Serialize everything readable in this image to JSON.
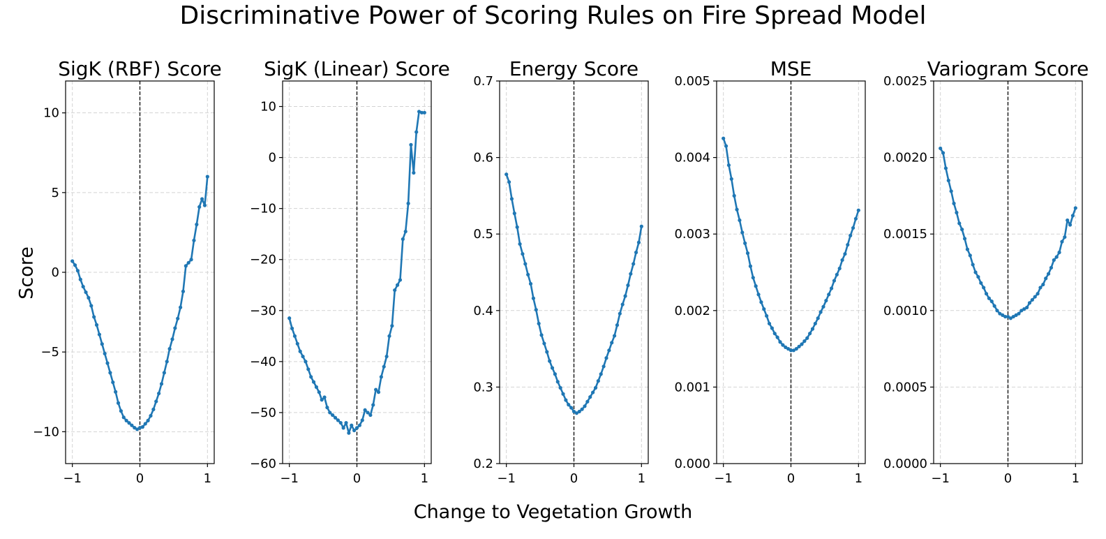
{
  "figure": {
    "title": "Discriminative Power of Scoring Rules on Fire Spread Model",
    "xlabel": "Change to Vegetation Growth",
    "ylabel": "Score"
  },
  "colors": {
    "line": "#1f77b4",
    "grid": "#d3d3d3",
    "zero_line": "#000000"
  },
  "chart_data": [
    {
      "type": "line",
      "title": "SigK (RBF) Score",
      "xlim": [
        -1.1,
        1.1
      ],
      "ylim": [
        -12,
        12
      ],
      "xticks": [
        -1,
        0,
        1
      ],
      "xtick_labels": [
        "−1",
        "0",
        "1"
      ],
      "yticks": [
        -10,
        -5,
        0,
        5,
        10
      ],
      "ytick_labels": [
        "−10",
        "−5",
        "0",
        "5",
        "10"
      ],
      "grid": true,
      "vline_x": 0,
      "series": [
        {
          "x": [
            -1.0,
            -0.96,
            -0.92,
            -0.88,
            -0.84,
            -0.8,
            -0.76,
            -0.72,
            -0.68,
            -0.64,
            -0.6,
            -0.56,
            -0.52,
            -0.48,
            -0.44,
            -0.4,
            -0.36,
            -0.32,
            -0.28,
            -0.24,
            -0.2,
            -0.16,
            -0.12,
            -0.08,
            -0.04,
            0.0,
            0.04,
            0.08,
            0.12,
            0.16,
            0.2,
            0.24,
            0.28,
            0.32,
            0.36,
            0.4,
            0.44,
            0.48,
            0.52,
            0.56,
            0.6,
            0.64,
            0.68,
            0.72,
            0.76,
            0.8,
            0.84,
            0.88,
            0.92,
            0.96,
            1.0
          ],
          "y": [
            0.7,
            0.45,
            0.1,
            -0.45,
            -0.9,
            -1.25,
            -1.6,
            -2.1,
            -2.8,
            -3.3,
            -3.9,
            -4.5,
            -5.1,
            -5.7,
            -6.3,
            -6.9,
            -7.5,
            -8.2,
            -8.7,
            -9.1,
            -9.3,
            -9.45,
            -9.6,
            -9.75,
            -9.85,
            -9.75,
            -9.7,
            -9.5,
            -9.3,
            -9.0,
            -8.6,
            -8.1,
            -7.6,
            -7.0,
            -6.3,
            -5.6,
            -4.8,
            -4.2,
            -3.5,
            -2.9,
            -2.2,
            -1.2,
            0.4,
            0.6,
            0.8,
            2.0,
            3.0,
            4.1,
            4.6,
            4.2,
            6.0
          ]
        }
      ]
    },
    {
      "type": "line",
      "title": "SigK (Linear) Score",
      "xlim": [
        -1.1,
        1.1
      ],
      "ylim": [
        -60,
        15
      ],
      "xticks": [
        -1,
        0,
        1
      ],
      "xtick_labels": [
        "−1",
        "0",
        "1"
      ],
      "yticks": [
        -60,
        -50,
        -40,
        -30,
        -20,
        -10,
        0,
        10
      ],
      "ytick_labels": [
        "−60",
        "−50",
        "−40",
        "−30",
        "−20",
        "−10",
        "0",
        "10"
      ],
      "grid": true,
      "vline_x": 0,
      "series": [
        {
          "x": [
            -1.0,
            -0.96,
            -0.92,
            -0.88,
            -0.84,
            -0.8,
            -0.76,
            -0.72,
            -0.68,
            -0.64,
            -0.6,
            -0.56,
            -0.52,
            -0.48,
            -0.44,
            -0.4,
            -0.36,
            -0.32,
            -0.28,
            -0.24,
            -0.2,
            -0.16,
            -0.12,
            -0.08,
            -0.04,
            0.0,
            0.04,
            0.08,
            0.12,
            0.16,
            0.2,
            0.24,
            0.28,
            0.32,
            0.36,
            0.4,
            0.44,
            0.48,
            0.52,
            0.56,
            0.6,
            0.64,
            0.68,
            0.72,
            0.76,
            0.8,
            0.84,
            0.88,
            0.92,
            0.96,
            1.0
          ],
          "y": [
            -31.5,
            -33.5,
            -35.0,
            -36.5,
            -38.0,
            -39.0,
            -40.0,
            -41.5,
            -43.0,
            -44.0,
            -45.0,
            -46.0,
            -47.5,
            -47.0,
            -49.0,
            -50.0,
            -50.5,
            -51.0,
            -51.5,
            -52.0,
            -53.0,
            -52.0,
            -54.0,
            -52.5,
            -53.5,
            -53.0,
            -52.5,
            -51.5,
            -49.5,
            -50.0,
            -50.5,
            -48.5,
            -45.5,
            -46.0,
            -43.0,
            -41.0,
            -39.0,
            -35.0,
            -33.0,
            -26.0,
            -25.0,
            -24.0,
            -16.0,
            -14.5,
            -9.0,
            2.5,
            -3.0,
            5.0,
            9.0,
            8.8,
            8.8
          ]
        }
      ]
    },
    {
      "type": "line",
      "title": "Energy Score",
      "xlim": [
        -1.1,
        1.1
      ],
      "ylim": [
        0.2,
        0.7
      ],
      "xticks": [
        -1,
        0,
        1
      ],
      "xtick_labels": [
        "−1",
        "0",
        "1"
      ],
      "yticks": [
        0.2,
        0.3,
        0.4,
        0.5,
        0.6,
        0.7
      ],
      "ytick_labels": [
        "0.2",
        "0.3",
        "0.4",
        "0.5",
        "0.6",
        "0.7"
      ],
      "grid": true,
      "vline_x": 0,
      "series": [
        {
          "x": [
            -1.0,
            -0.96,
            -0.92,
            -0.88,
            -0.84,
            -0.8,
            -0.76,
            -0.72,
            -0.68,
            -0.64,
            -0.6,
            -0.56,
            -0.52,
            -0.48,
            -0.44,
            -0.4,
            -0.36,
            -0.32,
            -0.28,
            -0.24,
            -0.2,
            -0.16,
            -0.12,
            -0.08,
            -0.04,
            0.0,
            0.04,
            0.08,
            0.12,
            0.16,
            0.2,
            0.24,
            0.28,
            0.32,
            0.36,
            0.4,
            0.44,
            0.48,
            0.52,
            0.56,
            0.6,
            0.64,
            0.68,
            0.72,
            0.76,
            0.8,
            0.84,
            0.88,
            0.92,
            0.96,
            1.0
          ],
          "y": [
            0.578,
            0.568,
            0.546,
            0.527,
            0.509,
            0.487,
            0.474,
            0.461,
            0.447,
            0.435,
            0.416,
            0.401,
            0.383,
            0.368,
            0.357,
            0.346,
            0.334,
            0.325,
            0.317,
            0.307,
            0.299,
            0.291,
            0.283,
            0.277,
            0.273,
            0.268,
            0.266,
            0.268,
            0.271,
            0.275,
            0.281,
            0.287,
            0.293,
            0.299,
            0.308,
            0.317,
            0.327,
            0.338,
            0.348,
            0.358,
            0.367,
            0.381,
            0.396,
            0.408,
            0.419,
            0.433,
            0.448,
            0.461,
            0.476,
            0.489,
            0.51
          ]
        }
      ]
    },
    {
      "type": "line",
      "title": "MSE",
      "xlim": [
        -1.1,
        1.1
      ],
      "ylim": [
        0.0,
        0.005
      ],
      "xticks": [
        -1,
        0,
        1
      ],
      "xtick_labels": [
        "−1",
        "0",
        "1"
      ],
      "yticks": [
        0.0,
        0.001,
        0.002,
        0.003,
        0.004,
        0.005
      ],
      "ytick_labels": [
        "0.000",
        "0.001",
        "0.002",
        "0.003",
        "0.004",
        "0.005"
      ],
      "grid": true,
      "vline_x": 0,
      "series": [
        {
          "x": [
            -1.0,
            -0.96,
            -0.92,
            -0.88,
            -0.84,
            -0.8,
            -0.76,
            -0.72,
            -0.68,
            -0.64,
            -0.6,
            -0.56,
            -0.52,
            -0.48,
            -0.44,
            -0.4,
            -0.36,
            -0.32,
            -0.28,
            -0.24,
            -0.2,
            -0.16,
            -0.12,
            -0.08,
            -0.04,
            0.0,
            0.04,
            0.08,
            0.12,
            0.16,
            0.2,
            0.24,
            0.28,
            0.32,
            0.36,
            0.4,
            0.44,
            0.48,
            0.52,
            0.56,
            0.6,
            0.64,
            0.68,
            0.72,
            0.76,
            0.8,
            0.84,
            0.88,
            0.92,
            0.96,
            1.0
          ],
          "y": [
            0.00425,
            0.00415,
            0.0039,
            0.00372,
            0.0035,
            0.00332,
            0.00318,
            0.00302,
            0.00288,
            0.00275,
            0.00258,
            0.00243,
            0.00232,
            0.00221,
            0.00211,
            0.00202,
            0.00193,
            0.00183,
            0.00177,
            0.0017,
            0.00165,
            0.00159,
            0.00155,
            0.00152,
            0.0015,
            0.00148,
            0.00148,
            0.0015,
            0.00153,
            0.00156,
            0.0016,
            0.00164,
            0.0017,
            0.00176,
            0.00183,
            0.0019,
            0.00198,
            0.00205,
            0.00213,
            0.00221,
            0.00229,
            0.00239,
            0.00247,
            0.00255,
            0.00266,
            0.00274,
            0.00286,
            0.00298,
            0.00308,
            0.0032,
            0.00331
          ]
        }
      ]
    },
    {
      "type": "line",
      "title": "Variogram Score",
      "xlim": [
        -1.1,
        1.1
      ],
      "ylim": [
        0.0,
        0.0025
      ],
      "xticks": [
        -1,
        0,
        1
      ],
      "xtick_labels": [
        "−1",
        "0",
        "1"
      ],
      "yticks": [
        0.0,
        0.0005,
        0.001,
        0.0015,
        0.002,
        0.0025
      ],
      "ytick_labels": [
        "0.0000",
        "0.0005",
        "0.0010",
        "0.0015",
        "0.0020",
        "0.0025"
      ],
      "grid": true,
      "vline_x": 0,
      "series": [
        {
          "x": [
            -1.0,
            -0.96,
            -0.92,
            -0.88,
            -0.84,
            -0.8,
            -0.76,
            -0.72,
            -0.68,
            -0.64,
            -0.6,
            -0.56,
            -0.52,
            -0.48,
            -0.44,
            -0.4,
            -0.36,
            -0.32,
            -0.28,
            -0.24,
            -0.2,
            -0.16,
            -0.12,
            -0.08,
            -0.04,
            0.0,
            0.04,
            0.08,
            0.12,
            0.16,
            0.2,
            0.24,
            0.28,
            0.32,
            0.36,
            0.4,
            0.44,
            0.48,
            0.52,
            0.56,
            0.6,
            0.64,
            0.68,
            0.72,
            0.76,
            0.8,
            0.84,
            0.88,
            0.92,
            0.96,
            1.0
          ],
          "y": [
            0.00206,
            0.00203,
            0.00193,
            0.00185,
            0.00178,
            0.0017,
            0.00164,
            0.00157,
            0.00153,
            0.00147,
            0.0014,
            0.00136,
            0.0013,
            0.00125,
            0.00122,
            0.00118,
            0.00115,
            0.00111,
            0.00108,
            0.00106,
            0.00103,
            0.001,
            0.00098,
            0.00097,
            0.00096,
            0.00096,
            0.00095,
            0.00096,
            0.00097,
            0.00098,
            0.001,
            0.00101,
            0.00102,
            0.00105,
            0.00107,
            0.00109,
            0.00111,
            0.00115,
            0.00117,
            0.00121,
            0.00124,
            0.00128,
            0.00133,
            0.00135,
            0.00138,
            0.00145,
            0.00148,
            0.00159,
            0.00156,
            0.00162,
            0.00167
          ]
        }
      ]
    }
  ]
}
